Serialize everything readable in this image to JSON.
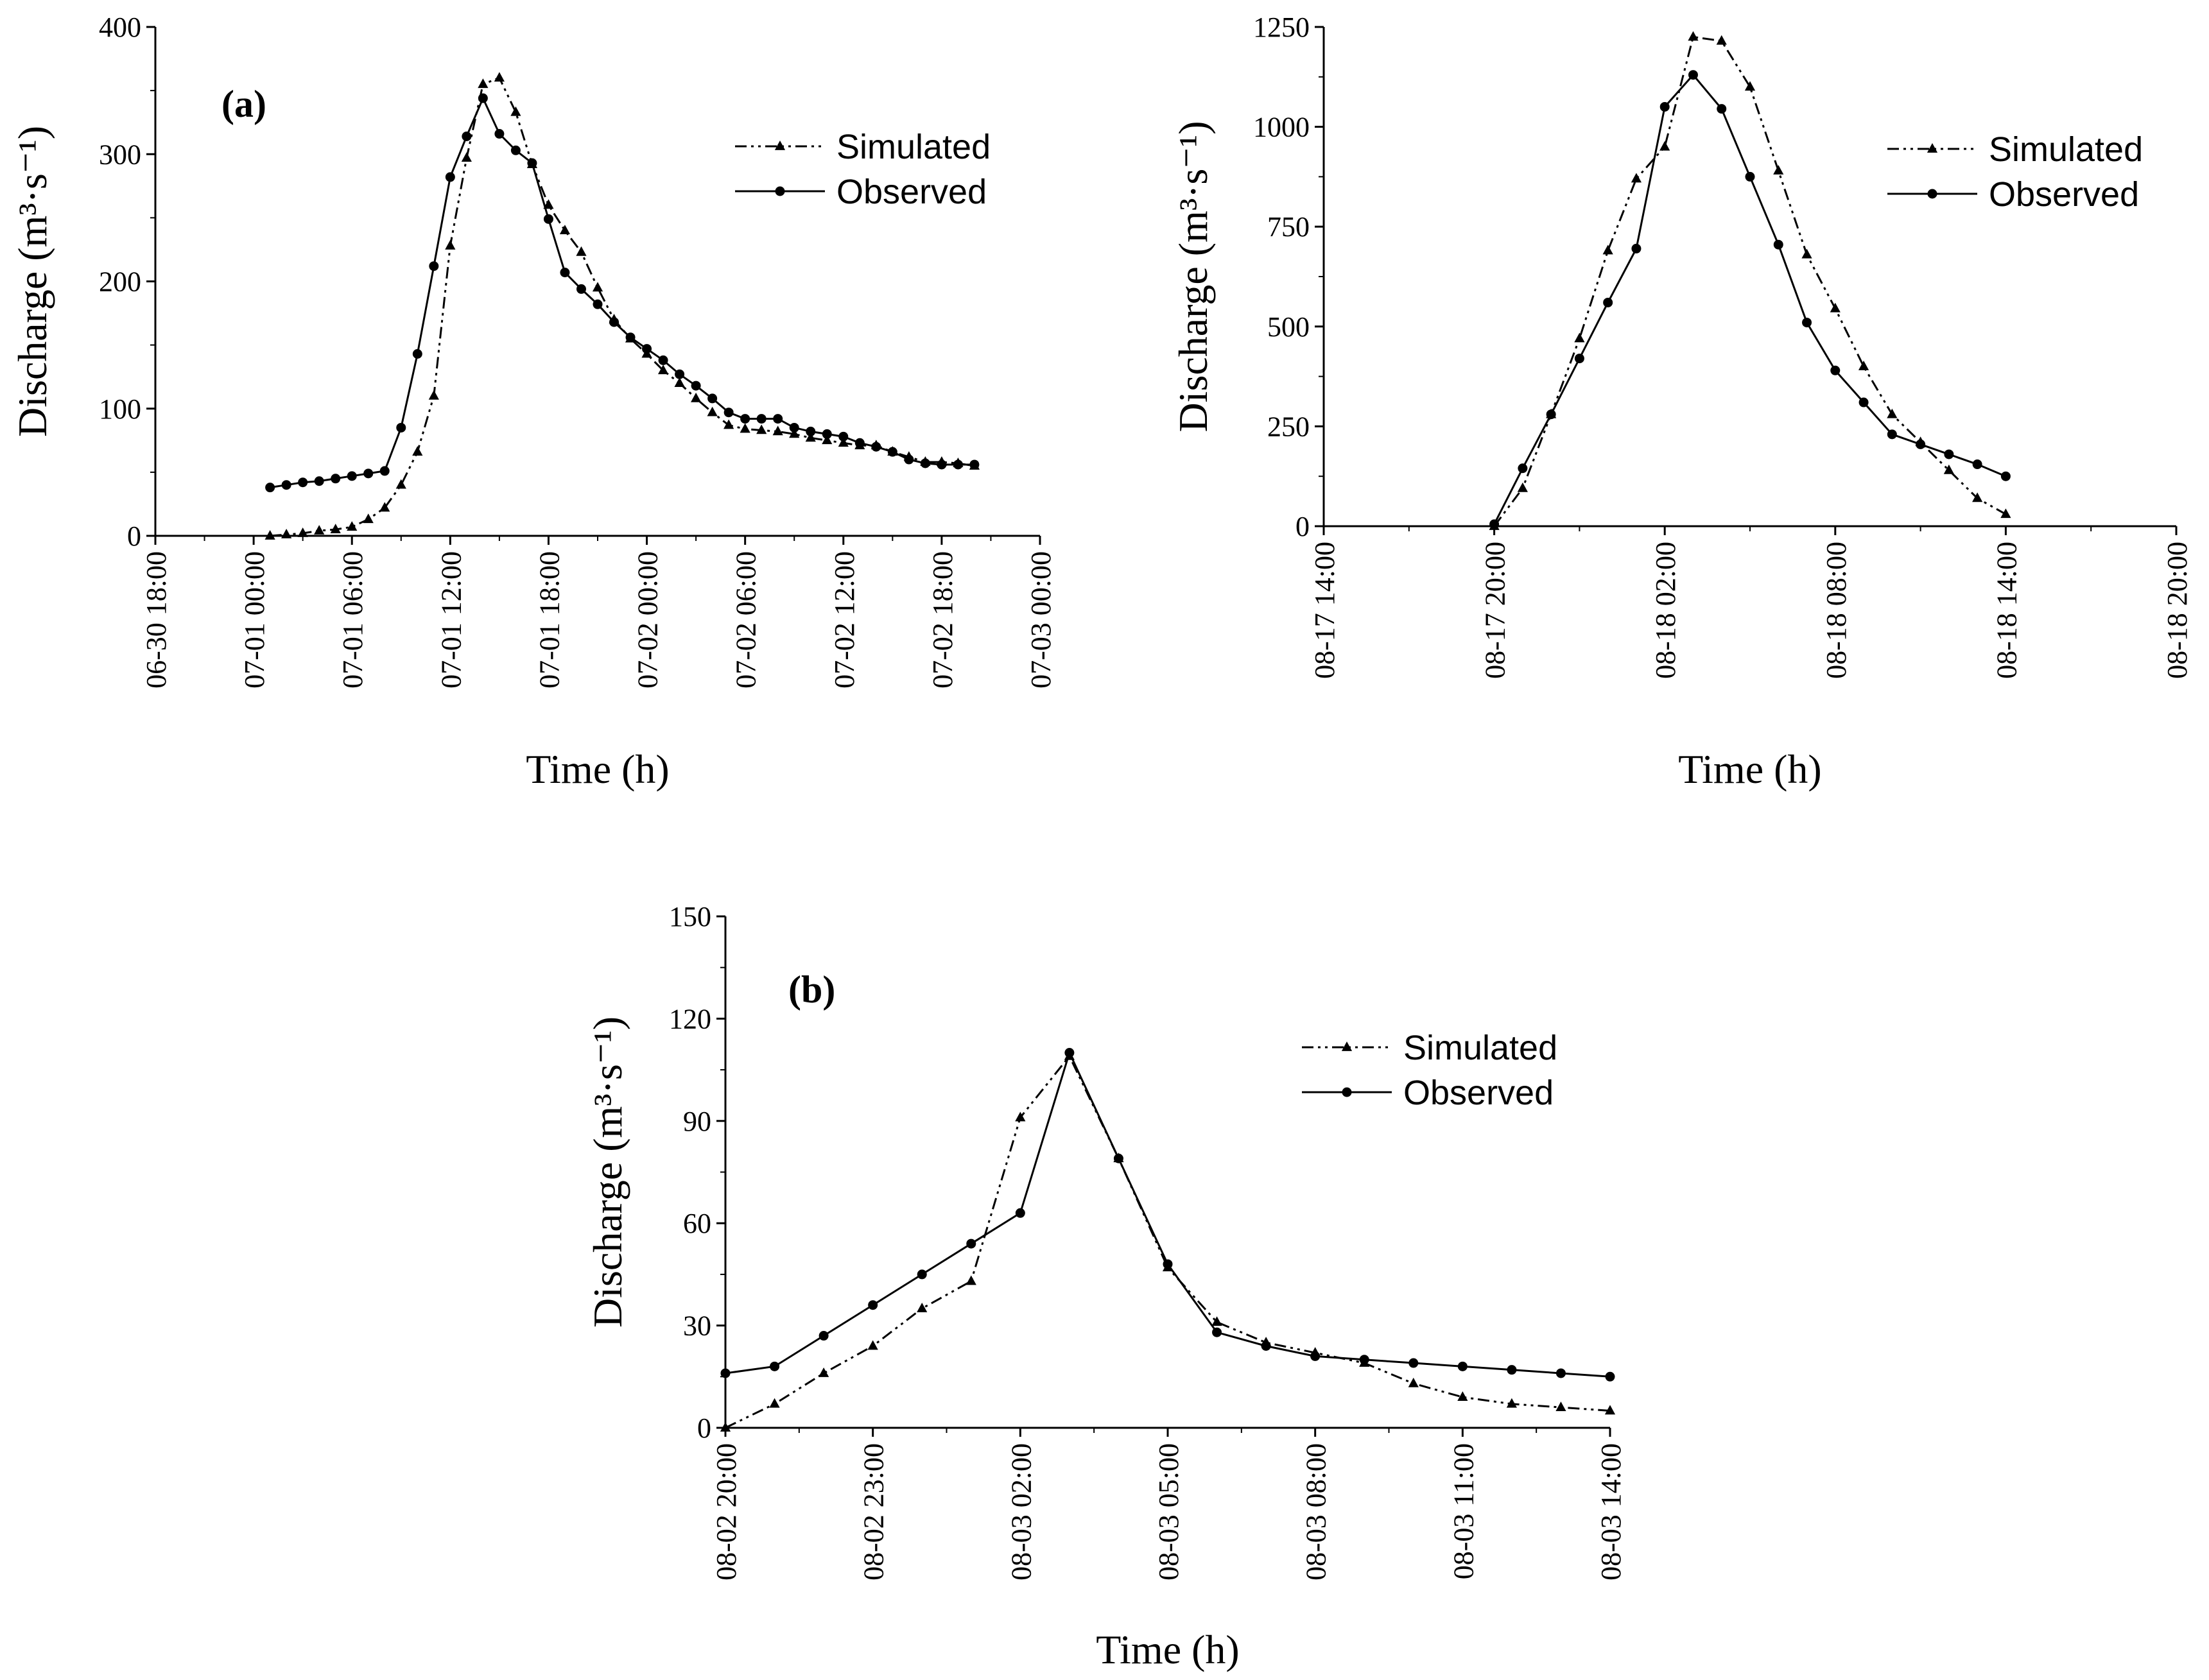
{
  "figure": {
    "background": "#ffffff",
    "line_color": "#000000"
  },
  "chart_data": [
    {
      "type": "line",
      "panel_label": "(a)",
      "xlabel": "Time (h)",
      "ylabel": "Discharge (m³·s⁻¹)",
      "ylim": [
        0,
        400
      ],
      "yticks": [
        0,
        100,
        200,
        300,
        400
      ],
      "xlim": [
        -6,
        48
      ],
      "xticks": [
        -6,
        0,
        6,
        12,
        18,
        24,
        30,
        36,
        42,
        48
      ],
      "xtick_labels": [
        "06-30 18:00",
        "07-01 00:00",
        "07-01 06:00",
        "07-01 12:00",
        "07-01 18:00",
        "07-02 00:00",
        "07-02 06:00",
        "07-02 12:00",
        "07-02 18:00",
        "07-03 00:00"
      ],
      "legend": "top-right",
      "series": [
        {
          "name": "Simulated",
          "style": "dash-dot-dot",
          "marker": "triangle",
          "x": [
            1,
            2,
            3,
            4,
            5,
            6,
            7,
            8,
            9,
            10,
            11,
            12,
            13,
            14,
            15,
            16,
            17,
            18,
            19,
            20,
            21,
            22,
            23,
            24,
            25,
            26,
            27,
            28,
            29,
            30,
            31,
            32,
            33,
            34,
            35,
            36,
            37,
            38,
            39,
            40,
            41,
            42,
            43,
            44
          ],
          "y": [
            0,
            1,
            2,
            4,
            5,
            7,
            13,
            22,
            40,
            66,
            110,
            228,
            297,
            355,
            360,
            333,
            292,
            260,
            240,
            223,
            195,
            170,
            155,
            143,
            130,
            120,
            108,
            97,
            87,
            84,
            83,
            82,
            80,
            77,
            75,
            73,
            71,
            71,
            66,
            62,
            58,
            58,
            57,
            55
          ]
        },
        {
          "name": "Observed",
          "style": "solid",
          "marker": "circle",
          "x": [
            1,
            2,
            3,
            4,
            5,
            6,
            7,
            8,
            9,
            10,
            11,
            12,
            13,
            14,
            15,
            16,
            17,
            18,
            19,
            20,
            21,
            22,
            23,
            24,
            25,
            26,
            27,
            28,
            29,
            30,
            31,
            32,
            33,
            34,
            35,
            36,
            37,
            38,
            39,
            40,
            41,
            42,
            43,
            44
          ],
          "y": [
            38,
            40,
            42,
            43,
            45,
            47,
            49,
            51,
            85,
            143,
            212,
            282,
            314,
            344,
            316,
            303,
            293,
            249,
            207,
            194,
            182,
            168,
            156,
            147,
            138,
            127,
            118,
            108,
            97,
            92,
            92,
            92,
            85,
            82,
            80,
            78,
            73,
            70,
            66,
            60,
            57,
            56,
            56,
            56
          ]
        }
      ]
    },
    {
      "type": "line",
      "panel_label": "",
      "xlabel": "Time (h)",
      "ylabel": "Discharge (m³·s⁻¹)",
      "ylim": [
        0,
        1250
      ],
      "yticks": [
        0,
        250,
        500,
        750,
        1000,
        1250
      ],
      "xlim": [
        -6,
        24
      ],
      "xticks": [
        -6,
        0,
        6,
        12,
        18,
        24
      ],
      "xtick_labels": [
        "08-17 14:00",
        "08-17 20:00",
        "08-18 02:00",
        "08-18 08:00",
        "08-18 14:00",
        "08-18 20:00"
      ],
      "legend": "top-right",
      "series": [
        {
          "name": "Simulated",
          "style": "dash-dot-dot",
          "marker": "triangle",
          "x": [
            0,
            1,
            2,
            3,
            4,
            5,
            6,
            7,
            8,
            9,
            10,
            11,
            12,
            13,
            14,
            15,
            16,
            17,
            18
          ],
          "y": [
            0,
            95,
            280,
            470,
            690,
            870,
            950,
            1225,
            1215,
            1100,
            890,
            680,
            545,
            400,
            280,
            210,
            140,
            70,
            30
          ]
        },
        {
          "name": "Observed",
          "style": "solid",
          "marker": "circle",
          "x": [
            0,
            1,
            2,
            3,
            4,
            5,
            6,
            7,
            8,
            9,
            10,
            11,
            12,
            13,
            14,
            15,
            16,
            17,
            18
          ],
          "y": [
            5,
            145,
            280,
            420,
            560,
            695,
            1050,
            1130,
            1045,
            875,
            705,
            510,
            390,
            310,
            230,
            205,
            180,
            155,
            125
          ]
        }
      ]
    },
    {
      "type": "line",
      "panel_label": "(b)",
      "xlabel": "Time (h)",
      "ylabel": "Discharge (m³·s⁻¹)",
      "ylim": [
        0,
        150
      ],
      "yticks": [
        0,
        30,
        60,
        90,
        120,
        150
      ],
      "xlim": [
        0,
        18
      ],
      "xticks": [
        0,
        3,
        6,
        9,
        12,
        15,
        18
      ],
      "xtick_labels": [
        "08-02 20:00",
        "08-02 23:00",
        "08-03 02:00",
        "08-03 05:00",
        "08-03 08:00",
        "08-03 11:00",
        "08-03 14:00"
      ],
      "legend": "top-right",
      "series": [
        {
          "name": "Simulated",
          "style": "dash-dot-dot",
          "marker": "triangle",
          "x": [
            0,
            1,
            2,
            3,
            4,
            5,
            6,
            7,
            8,
            9,
            10,
            11,
            12,
            13,
            14,
            15,
            16,
            17,
            18
          ],
          "y": [
            0,
            7,
            16,
            24,
            35,
            43,
            91,
            109,
            79,
            47,
            31,
            25,
            22,
            19,
            13,
            9,
            7,
            6,
            5
          ]
        },
        {
          "name": "Observed",
          "style": "solid",
          "marker": "circle",
          "x": [
            0,
            1,
            2,
            3,
            4,
            5,
            6,
            7,
            8,
            9,
            10,
            11,
            12,
            13,
            14,
            15,
            16,
            17,
            18
          ],
          "y": [
            16,
            18,
            27,
            36,
            45,
            54,
            63,
            110,
            79,
            48,
            28,
            24,
            21,
            20,
            19,
            18,
            17,
            16,
            15
          ]
        }
      ]
    }
  ]
}
